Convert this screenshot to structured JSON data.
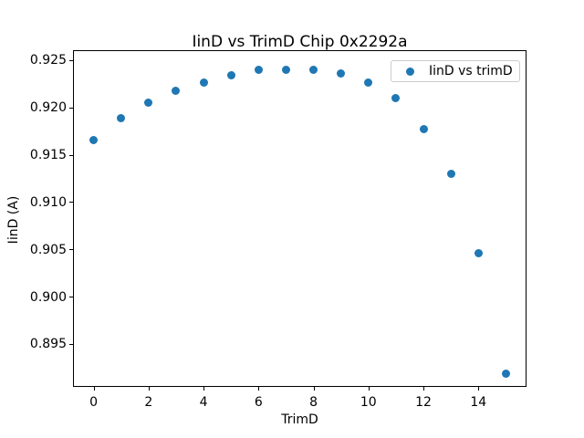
{
  "figure": {
    "background": "#ffffff",
    "axis_color": "#000000"
  },
  "chart_data": {
    "type": "scatter",
    "title": "IinD vs TrimD Chip 0x2292a",
    "xlabel": "TrimD",
    "ylabel": "IinD (A)",
    "grid": false,
    "xlim": [
      -0.75,
      15.75
    ],
    "ylim": [
      0.8905,
      0.9261
    ],
    "xticks": {
      "values": [
        0,
        2,
        4,
        6,
        8,
        10,
        12,
        14
      ],
      "labels": [
        "0",
        "2",
        "4",
        "6",
        "8",
        "10",
        "12",
        "14"
      ]
    },
    "yticks": {
      "values": [
        0.895,
        0.9,
        0.905,
        0.91,
        0.915,
        0.92,
        0.925
      ],
      "labels": [
        "0.895",
        "0.900",
        "0.905",
        "0.910",
        "0.915",
        "0.920",
        "0.925"
      ]
    },
    "series": [
      {
        "name": "IinD vs trimD",
        "marker": "circle",
        "color": "#1f77b4",
        "x": [
          0,
          1,
          2,
          3,
          4,
          5,
          6,
          7,
          8,
          9,
          10,
          11,
          12,
          13,
          14,
          15
        ],
        "y": [
          0.9166,
          0.9189,
          0.9206,
          0.9218,
          0.9227,
          0.9234,
          0.924,
          0.924,
          0.924,
          0.9236,
          0.9227,
          0.921,
          0.9178,
          0.913,
          0.9046,
          0.8919
        ]
      }
    ],
    "legend": {
      "position": "upper right",
      "entries": [
        {
          "label": "IinD vs trimD",
          "color": "#1f77b4"
        }
      ]
    }
  }
}
